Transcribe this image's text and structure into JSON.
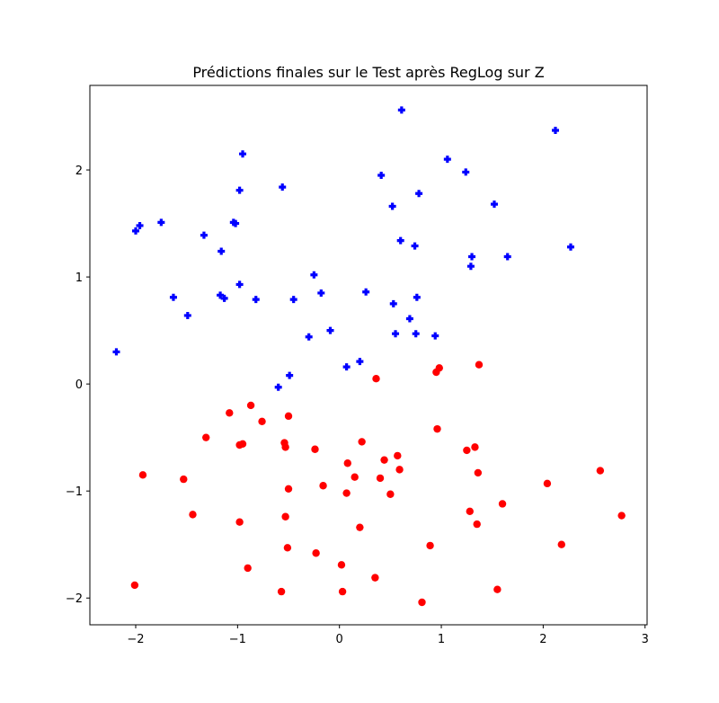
{
  "chart_data": {
    "type": "scatter",
    "title": "Prédictions finales sur le Test après RegLog sur Z",
    "xlabel": "",
    "ylabel": "",
    "xlim": [
      -2.45,
      3.02
    ],
    "ylim": [
      -2.25,
      2.79
    ],
    "xticks": [
      -2,
      -1,
      0,
      1,
      2,
      3
    ],
    "xtick_labels": [
      "−2",
      "−1",
      "0",
      "1",
      "2",
      "3"
    ],
    "yticks": [
      -2,
      -1,
      0,
      1,
      2
    ],
    "ytick_labels": [
      "−2",
      "−1",
      "0",
      "1",
      "2"
    ],
    "grid": false,
    "colors": {
      "class_blue": "#0000ff",
      "class_red": "#ff0000"
    },
    "series": [
      {
        "marker": "plus",
        "color": "#0000ff",
        "points": [
          [
            -2.19,
            0.3
          ],
          [
            -2.0,
            1.43
          ],
          [
            -1.96,
            1.48
          ],
          [
            -1.75,
            1.51
          ],
          [
            -1.63,
            0.81
          ],
          [
            -1.49,
            0.64
          ],
          [
            -1.33,
            1.39
          ],
          [
            -1.17,
            0.83
          ],
          [
            -1.16,
            1.24
          ],
          [
            -1.13,
            0.8
          ],
          [
            -1.04,
            1.51
          ],
          [
            -1.02,
            1.5
          ],
          [
            -0.98,
            1.81
          ],
          [
            -0.98,
            0.93
          ],
          [
            -0.95,
            2.15
          ],
          [
            -0.82,
            0.79
          ],
          [
            -0.6,
            -0.03
          ],
          [
            -0.56,
            1.84
          ],
          [
            -0.49,
            0.08
          ],
          [
            -0.45,
            0.79
          ],
          [
            -0.3,
            0.44
          ],
          [
            -0.25,
            1.02
          ],
          [
            -0.18,
            0.85
          ],
          [
            -0.09,
            0.5
          ],
          [
            0.07,
            0.16
          ],
          [
            0.2,
            0.21
          ],
          [
            0.26,
            0.86
          ],
          [
            0.41,
            1.95
          ],
          [
            0.52,
            1.66
          ],
          [
            0.53,
            0.75
          ],
          [
            0.55,
            0.47
          ],
          [
            0.6,
            1.34
          ],
          [
            0.61,
            2.56
          ],
          [
            0.69,
            0.61
          ],
          [
            0.74,
            1.29
          ],
          [
            0.75,
            0.47
          ],
          [
            0.76,
            0.81
          ],
          [
            0.78,
            1.78
          ],
          [
            0.94,
            0.45
          ],
          [
            1.06,
            2.1
          ],
          [
            1.24,
            1.98
          ],
          [
            1.29,
            1.1
          ],
          [
            1.3,
            1.19
          ],
          [
            1.52,
            1.68
          ],
          [
            1.65,
            1.19
          ],
          [
            2.12,
            2.37
          ],
          [
            2.27,
            1.28
          ]
        ]
      },
      {
        "marker": "circle",
        "color": "#ff0000",
        "points": [
          [
            -2.01,
            -1.88
          ],
          [
            -1.93,
            -0.85
          ],
          [
            -1.53,
            -0.89
          ],
          [
            -1.44,
            -1.22
          ],
          [
            -1.31,
            -0.5
          ],
          [
            -1.08,
            -0.27
          ],
          [
            -0.98,
            -1.29
          ],
          [
            -0.98,
            -0.57
          ],
          [
            -0.95,
            -0.56
          ],
          [
            -0.9,
            -1.72
          ],
          [
            -0.87,
            -0.2
          ],
          [
            -0.76,
            -0.35
          ],
          [
            -0.57,
            -1.94
          ],
          [
            -0.54,
            -0.55
          ],
          [
            -0.53,
            -0.59
          ],
          [
            -0.53,
            -1.24
          ],
          [
            -0.51,
            -1.53
          ],
          [
            -0.5,
            -0.98
          ],
          [
            -0.5,
            -0.3
          ],
          [
            -0.24,
            -0.61
          ],
          [
            -0.23,
            -1.58
          ],
          [
            -0.16,
            -0.95
          ],
          [
            0.02,
            -1.69
          ],
          [
            0.03,
            -1.94
          ],
          [
            0.07,
            -1.02
          ],
          [
            0.08,
            -0.74
          ],
          [
            0.15,
            -0.87
          ],
          [
            0.2,
            -1.34
          ],
          [
            0.22,
            -0.54
          ],
          [
            0.35,
            -1.81
          ],
          [
            0.36,
            0.05
          ],
          [
            0.4,
            -0.88
          ],
          [
            0.44,
            -0.71
          ],
          [
            0.5,
            -1.03
          ],
          [
            0.57,
            -0.67
          ],
          [
            0.59,
            -0.8
          ],
          [
            0.81,
            -2.04
          ],
          [
            0.89,
            -1.51
          ],
          [
            0.95,
            0.11
          ],
          [
            0.96,
            -0.42
          ],
          [
            0.98,
            0.15
          ],
          [
            1.25,
            -0.62
          ],
          [
            1.28,
            -1.19
          ],
          [
            1.33,
            -0.59
          ],
          [
            1.35,
            -1.31
          ],
          [
            1.36,
            -0.83
          ],
          [
            1.37,
            0.18
          ],
          [
            1.55,
            -1.92
          ],
          [
            1.6,
            -1.12
          ],
          [
            2.04,
            -0.93
          ],
          [
            2.18,
            -1.5
          ],
          [
            2.56,
            -0.81
          ],
          [
            2.77,
            -1.23
          ]
        ]
      }
    ]
  }
}
